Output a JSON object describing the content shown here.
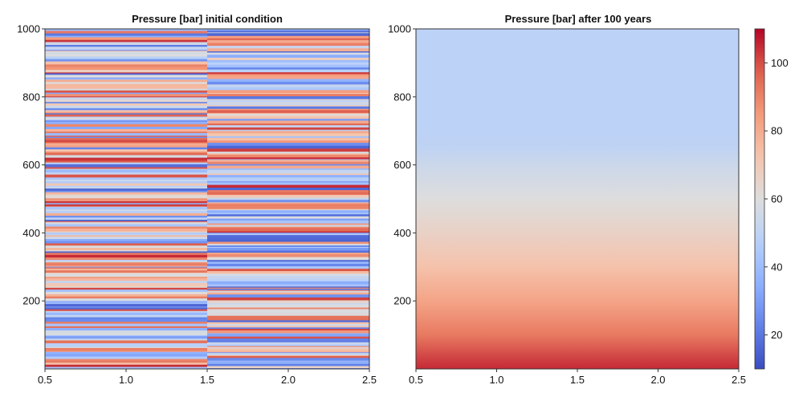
{
  "chart_data": [
    {
      "type": "heatmap",
      "title": "Pressure [bar] initial condition",
      "xlabel": "",
      "ylabel": "",
      "xlim": [
        0.5,
        2.5
      ],
      "ylim": [
        0,
        1000
      ],
      "x_ticks": [
        "0.5",
        "1.0",
        "1.5",
        "2.0",
        "2.5"
      ],
      "y_ticks": [
        "200",
        "400",
        "600",
        "800",
        "1000"
      ],
      "columns": [
        {
          "x_range": [
            0.5,
            1.5
          ],
          "description_value_range": [
            15,
            105
          ]
        },
        {
          "x_range": [
            1.5,
            2.5
          ],
          "description_value_range": [
            15,
            105
          ]
        }
      ],
      "pattern": "random horizontal layers, 2 columns, values 15-105 bar"
    },
    {
      "type": "heatmap",
      "title": "Pressure [bar] after 100 years",
      "xlabel": "",
      "ylabel": "",
      "xlim": [
        0.5,
        2.5
      ],
      "ylim": [
        0,
        1000
      ],
      "x_ticks": [
        "0.5",
        "1.0",
        "1.5",
        "2.0",
        "2.5"
      ],
      "y_ticks": [
        "200",
        "400",
        "600",
        "800",
        "1000"
      ],
      "profile": [
        {
          "depth": 0,
          "value": 105
        },
        {
          "depth": 100,
          "value": 92
        },
        {
          "depth": 200,
          "value": 82
        },
        {
          "depth": 300,
          "value": 73
        },
        {
          "depth": 400,
          "value": 66
        },
        {
          "depth": 500,
          "value": 60
        },
        {
          "depth": 600,
          "value": 54
        },
        {
          "depth": 650,
          "value": 50
        },
        {
          "depth": 700,
          "value": 49
        },
        {
          "depth": 1000,
          "value": 49
        }
      ]
    }
  ],
  "colorbar": {
    "range": [
      10,
      110
    ],
    "ticks": [
      "20",
      "40",
      "60",
      "80",
      "100"
    ],
    "tick_values": [
      20,
      40,
      60,
      80,
      100
    ],
    "colormap": "coolwarm"
  }
}
